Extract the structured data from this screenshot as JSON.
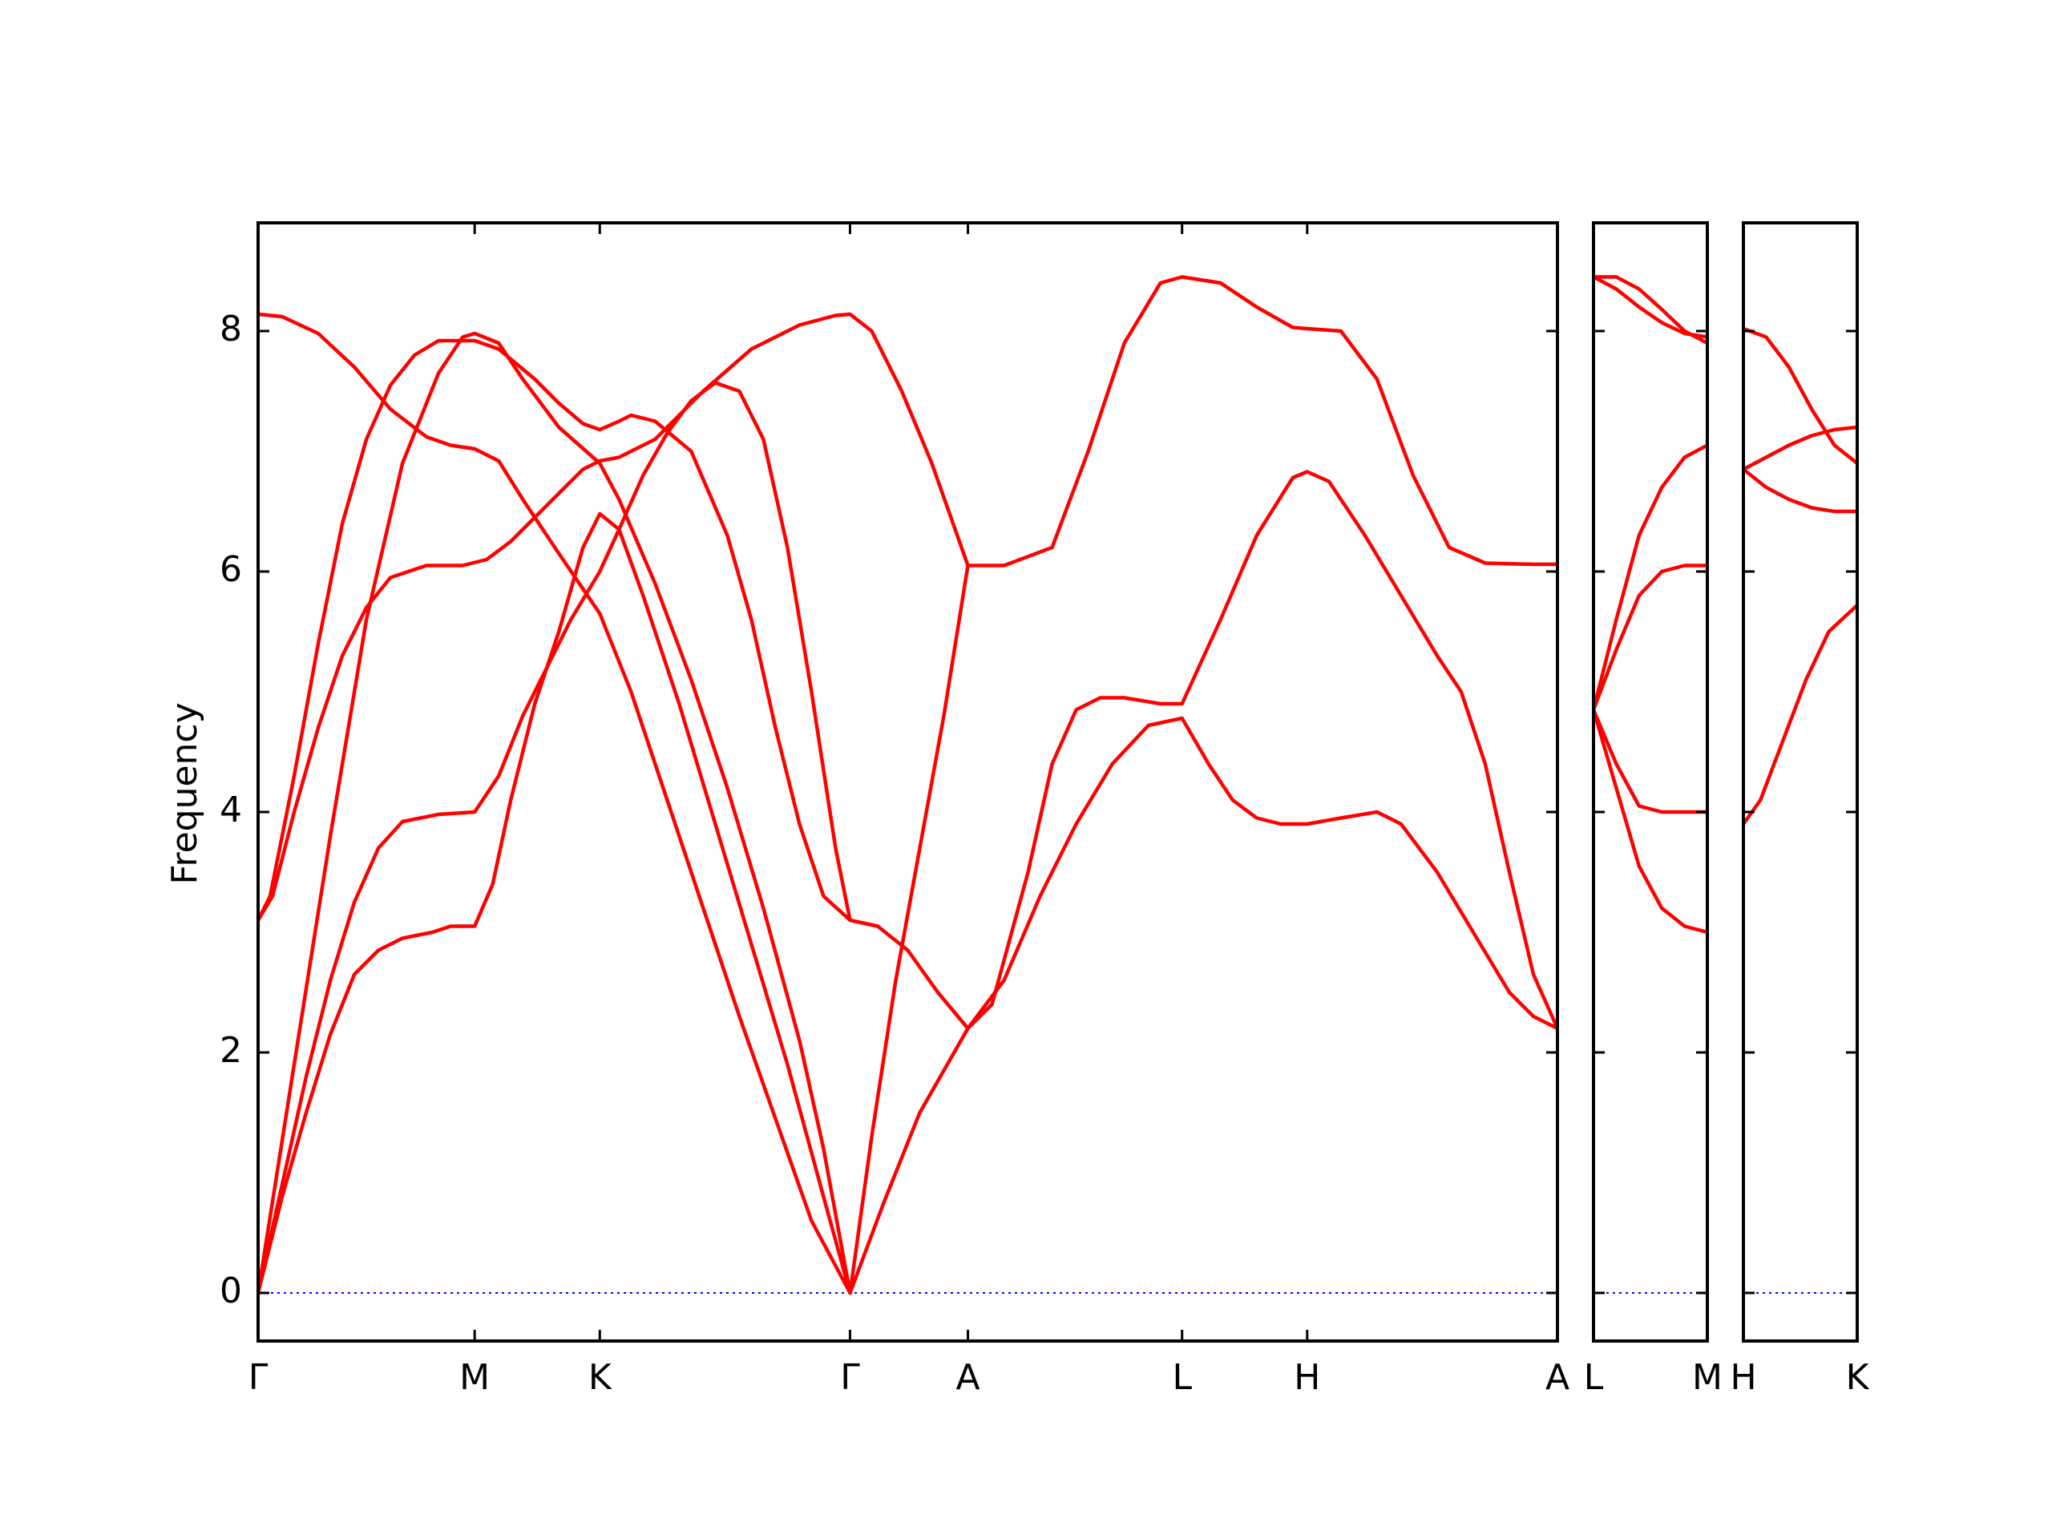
{
  "chart_data": {
    "type": "line",
    "ylabel": "Frequency",
    "ylim": [
      -0.4,
      8.9
    ],
    "yticks": [
      0,
      2,
      4,
      6,
      8
    ],
    "line_color": "#ff0000",
    "zero_line_color": "#0000ff",
    "grid": false,
    "legend": "none",
    "panels": [
      {
        "id": "p1",
        "xlim": [
          0,
          10.8
        ],
        "ticks": [
          {
            "x": 0.0,
            "label": "Γ"
          },
          {
            "x": 1.8,
            "label": "M"
          },
          {
            "x": 2.84,
            "label": "K"
          },
          {
            "x": 4.92,
            "label": "Γ"
          },
          {
            "x": 5.9,
            "label": "A"
          },
          {
            "x": 7.68,
            "label": "L"
          },
          {
            "x": 8.72,
            "label": "H"
          },
          {
            "x": 10.8,
            "label": "A"
          }
        ],
        "bands": [
          [
            [
              0,
              3.1
            ],
            [
              0.12,
              3.3
            ],
            [
              0.3,
              4.0
            ],
            [
              0.5,
              4.7
            ],
            [
              0.7,
              5.3
            ],
            [
              0.9,
              5.7
            ],
            [
              1.1,
              5.95
            ],
            [
              1.4,
              6.05
            ],
            [
              1.7,
              6.05
            ],
            [
              1.9,
              6.1
            ],
            [
              2.1,
              6.25
            ],
            [
              2.3,
              6.45
            ],
            [
              2.5,
              6.65
            ],
            [
              2.7,
              6.85
            ],
            [
              2.84,
              6.92
            ],
            [
              3.0,
              6.95
            ],
            [
              3.3,
              7.1
            ],
            [
              3.7,
              7.5
            ],
            [
              4.1,
              7.85
            ],
            [
              4.5,
              8.05
            ],
            [
              4.8,
              8.13
            ],
            [
              4.92,
              8.14
            ],
            [
              5.1,
              8.0
            ],
            [
              5.35,
              7.5
            ],
            [
              5.6,
              6.9
            ],
            [
              5.9,
              6.05
            ],
            [
              6.2,
              6.05
            ],
            [
              6.6,
              6.2
            ],
            [
              6.9,
              7.0
            ],
            [
              7.2,
              7.9
            ],
            [
              7.5,
              8.4
            ],
            [
              7.68,
              8.45
            ],
            [
              8.0,
              8.4
            ],
            [
              8.3,
              8.2
            ],
            [
              8.6,
              8.03
            ],
            [
              8.72,
              8.02
            ],
            [
              9.0,
              8.0
            ],
            [
              9.3,
              7.6
            ],
            [
              9.6,
              6.8
            ],
            [
              9.9,
              6.2
            ],
            [
              10.2,
              6.07
            ],
            [
              10.6,
              6.06
            ],
            [
              10.8,
              6.06
            ]
          ],
          [
            [
              0,
              3.1
            ],
            [
              0.1,
              3.3
            ],
            [
              0.3,
              4.3
            ],
            [
              0.5,
              5.4
            ],
            [
              0.7,
              6.4
            ],
            [
              0.9,
              7.1
            ],
            [
              1.1,
              7.55
            ],
            [
              1.3,
              7.8
            ],
            [
              1.5,
              7.92
            ],
            [
              1.8,
              7.92
            ],
            [
              2.0,
              7.85
            ],
            [
              2.3,
              7.6
            ],
            [
              2.5,
              7.4
            ],
            [
              2.7,
              7.23
            ],
            [
              2.84,
              7.18
            ],
            [
              3.0,
              7.25
            ],
            [
              3.1,
              7.3
            ],
            [
              3.3,
              7.25
            ],
            [
              3.6,
              7.0
            ],
            [
              3.9,
              6.3
            ],
            [
              4.1,
              5.6
            ],
            [
              4.3,
              4.7
            ],
            [
              4.5,
              3.9
            ],
            [
              4.7,
              3.3
            ],
            [
              4.92,
              3.1
            ],
            [
              5.15,
              3.05
            ],
            [
              5.4,
              2.85
            ],
            [
              5.65,
              2.5
            ],
            [
              5.9,
              2.2
            ],
            [
              6.1,
              2.4
            ],
            [
              6.4,
              3.5
            ],
            [
              6.6,
              4.4
            ],
            [
              6.8,
              4.85
            ],
            [
              7.0,
              4.95
            ],
            [
              7.2,
              4.95
            ],
            [
              7.5,
              4.9
            ],
            [
              7.68,
              4.9
            ],
            [
              8.0,
              5.6
            ],
            [
              8.3,
              6.3
            ],
            [
              8.6,
              6.78
            ],
            [
              8.72,
              6.83
            ],
            [
              8.9,
              6.75
            ],
            [
              9.2,
              6.3
            ],
            [
              9.5,
              5.8
            ],
            [
              9.8,
              5.3
            ],
            [
              10.0,
              5.0
            ],
            [
              10.2,
              4.4
            ],
            [
              10.4,
              3.5
            ],
            [
              10.6,
              2.65
            ],
            [
              10.8,
              2.2
            ]
          ],
          [
            [
              0,
              8.14
            ],
            [
              0.2,
              8.12
            ],
            [
              0.5,
              7.98
            ],
            [
              0.8,
              7.7
            ],
            [
              1.1,
              7.35
            ],
            [
              1.4,
              7.12
            ],
            [
              1.6,
              7.05
            ],
            [
              1.8,
              7.02
            ],
            [
              2.0,
              6.92
            ],
            [
              2.2,
              6.6
            ],
            [
              2.5,
              6.15
            ],
            [
              2.84,
              5.65
            ],
            [
              3.1,
              5.0
            ],
            [
              3.4,
              4.1
            ],
            [
              3.7,
              3.2
            ],
            [
              4.0,
              2.3
            ],
            [
              4.3,
              1.45
            ],
            [
              4.6,
              0.6
            ],
            [
              4.92,
              0.0
            ],
            [
              5.2,
              0.75
            ],
            [
              5.5,
              1.5
            ],
            [
              5.9,
              2.2
            ],
            [
              6.2,
              2.6
            ],
            [
              6.5,
              3.3
            ],
            [
              6.8,
              3.9
            ],
            [
              7.1,
              4.4
            ],
            [
              7.4,
              4.72
            ],
            [
              7.68,
              4.78
            ],
            [
              7.9,
              4.4
            ],
            [
              8.1,
              4.1
            ],
            [
              8.3,
              3.95
            ],
            [
              8.5,
              3.9
            ],
            [
              8.72,
              3.9
            ],
            [
              9.0,
              3.95
            ],
            [
              9.3,
              4.0
            ],
            [
              9.5,
              3.9
            ],
            [
              9.8,
              3.5
            ],
            [
              10.1,
              3.0
            ],
            [
              10.4,
              2.5
            ],
            [
              10.6,
              2.3
            ],
            [
              10.8,
              2.2
            ]
          ],
          [
            [
              0,
              0.0
            ],
            [
              0.2,
              0.8
            ],
            [
              0.4,
              1.5
            ],
            [
              0.6,
              2.15
            ],
            [
              0.8,
              2.65
            ],
            [
              1.0,
              2.85
            ],
            [
              1.2,
              2.95
            ],
            [
              1.45,
              3.0
            ],
            [
              1.6,
              3.05
            ],
            [
              1.8,
              3.05
            ],
            [
              1.95,
              3.4
            ],
            [
              2.1,
              4.1
            ],
            [
              2.3,
              4.9
            ],
            [
              2.5,
              5.5
            ],
            [
              2.7,
              6.2
            ],
            [
              2.84,
              6.48
            ],
            [
              3.0,
              6.35
            ],
            [
              3.2,
              5.8
            ],
            [
              3.5,
              4.9
            ],
            [
              3.8,
              3.9
            ],
            [
              4.1,
              2.9
            ],
            [
              4.4,
              1.9
            ],
            [
              4.7,
              0.8
            ],
            [
              4.92,
              0.0
            ]
          ],
          [
            [
              0,
              0.0
            ],
            [
              0.2,
              0.9
            ],
            [
              0.4,
              1.8
            ],
            [
              0.6,
              2.6
            ],
            [
              0.8,
              3.25
            ],
            [
              1.0,
              3.7
            ],
            [
              1.2,
              3.92
            ],
            [
              1.5,
              3.98
            ],
            [
              1.8,
              4.0
            ],
            [
              2.0,
              4.3
            ],
            [
              2.2,
              4.8
            ],
            [
              2.4,
              5.2
            ],
            [
              2.6,
              5.6
            ],
            [
              2.84,
              6.0
            ],
            [
              3.0,
              6.35
            ],
            [
              3.2,
              6.8
            ],
            [
              3.4,
              7.15
            ],
            [
              3.6,
              7.42
            ],
            [
              3.8,
              7.57
            ],
            [
              4.0,
              7.5
            ],
            [
              4.2,
              7.1
            ],
            [
              4.4,
              6.2
            ],
            [
              4.6,
              5.0
            ],
            [
              4.8,
              3.7
            ],
            [
              4.92,
              3.1
            ]
          ],
          [
            [
              0,
              0.0
            ],
            [
              0.3,
              1.9
            ],
            [
              0.6,
              3.8
            ],
            [
              0.9,
              5.6
            ],
            [
              1.2,
              6.9
            ],
            [
              1.5,
              7.65
            ],
            [
              1.7,
              7.95
            ],
            [
              1.8,
              7.98
            ],
            [
              2.0,
              7.9
            ],
            [
              2.2,
              7.6
            ],
            [
              2.5,
              7.2
            ],
            [
              2.84,
              6.9
            ],
            [
              3.0,
              6.6
            ],
            [
              3.3,
              5.9
            ],
            [
              3.6,
              5.1
            ],
            [
              3.9,
              4.2
            ],
            [
              4.2,
              3.2
            ],
            [
              4.5,
              2.1
            ],
            [
              4.7,
              1.2
            ],
            [
              4.92,
              0.0
            ]
          ],
          [
            [
              4.92,
              0.0
            ],
            [
              5.1,
              1.3
            ],
            [
              5.3,
              2.6
            ],
            [
              5.5,
              3.7
            ],
            [
              5.7,
              4.8
            ],
            [
              5.9,
              6.05
            ]
          ]
        ]
      },
      {
        "id": "p2",
        "xlim": [
          0,
          1.0
        ],
        "ticks": [
          {
            "x": 0.0,
            "label": "L"
          },
          {
            "x": 1.0,
            "label": "M"
          }
        ],
        "bands": [
          [
            [
              0,
              8.45
            ],
            [
              0.2,
              8.45
            ],
            [
              0.4,
              8.35
            ],
            [
              0.6,
              8.18
            ],
            [
              0.8,
              8.0
            ],
            [
              1.0,
              7.9
            ]
          ],
          [
            [
              0,
              8.45
            ],
            [
              0.2,
              8.35
            ],
            [
              0.4,
              8.2
            ],
            [
              0.6,
              8.07
            ],
            [
              0.8,
              7.98
            ],
            [
              1.0,
              7.95
            ]
          ],
          [
            [
              0,
              4.85
            ],
            [
              0.2,
              5.6
            ],
            [
              0.4,
              6.3
            ],
            [
              0.6,
              6.7
            ],
            [
              0.8,
              6.95
            ],
            [
              1.0,
              7.05
            ]
          ],
          [
            [
              0,
              4.85
            ],
            [
              0.2,
              5.35
            ],
            [
              0.4,
              5.8
            ],
            [
              0.6,
              6.0
            ],
            [
              0.8,
              6.05
            ],
            [
              1.0,
              6.05
            ]
          ],
          [
            [
              0,
              4.85
            ],
            [
              0.2,
              4.4
            ],
            [
              0.4,
              4.05
            ],
            [
              0.6,
              4.0
            ],
            [
              0.8,
              4.0
            ],
            [
              1.0,
              4.0
            ]
          ],
          [
            [
              0,
              4.85
            ],
            [
              0.2,
              4.2
            ],
            [
              0.4,
              3.55
            ],
            [
              0.6,
              3.2
            ],
            [
              0.8,
              3.05
            ],
            [
              1.0,
              3.0
            ]
          ]
        ]
      },
      {
        "id": "p3",
        "xlim": [
          0,
          1.0
        ],
        "ticks": [
          {
            "x": 0.0,
            "label": "H"
          },
          {
            "x": 1.0,
            "label": "K"
          }
        ],
        "bands": [
          [
            [
              0,
              8.02
            ],
            [
              0.2,
              7.95
            ],
            [
              0.4,
              7.7
            ],
            [
              0.6,
              7.35
            ],
            [
              0.8,
              7.05
            ],
            [
              1.0,
              6.9
            ]
          ],
          [
            [
              0,
              6.85
            ],
            [
              0.2,
              6.95
            ],
            [
              0.4,
              7.05
            ],
            [
              0.6,
              7.13
            ],
            [
              0.8,
              7.18
            ],
            [
              1.0,
              7.2
            ]
          ],
          [
            [
              0,
              6.85
            ],
            [
              0.2,
              6.7
            ],
            [
              0.4,
              6.6
            ],
            [
              0.6,
              6.53
            ],
            [
              0.8,
              6.5
            ],
            [
              1.0,
              6.5
            ]
          ],
          [
            [
              0,
              3.9
            ],
            [
              0.15,
              4.1
            ],
            [
              0.35,
              4.6
            ],
            [
              0.55,
              5.1
            ],
            [
              0.75,
              5.5
            ],
            [
              1.0,
              5.72
            ]
          ]
        ]
      }
    ]
  }
}
